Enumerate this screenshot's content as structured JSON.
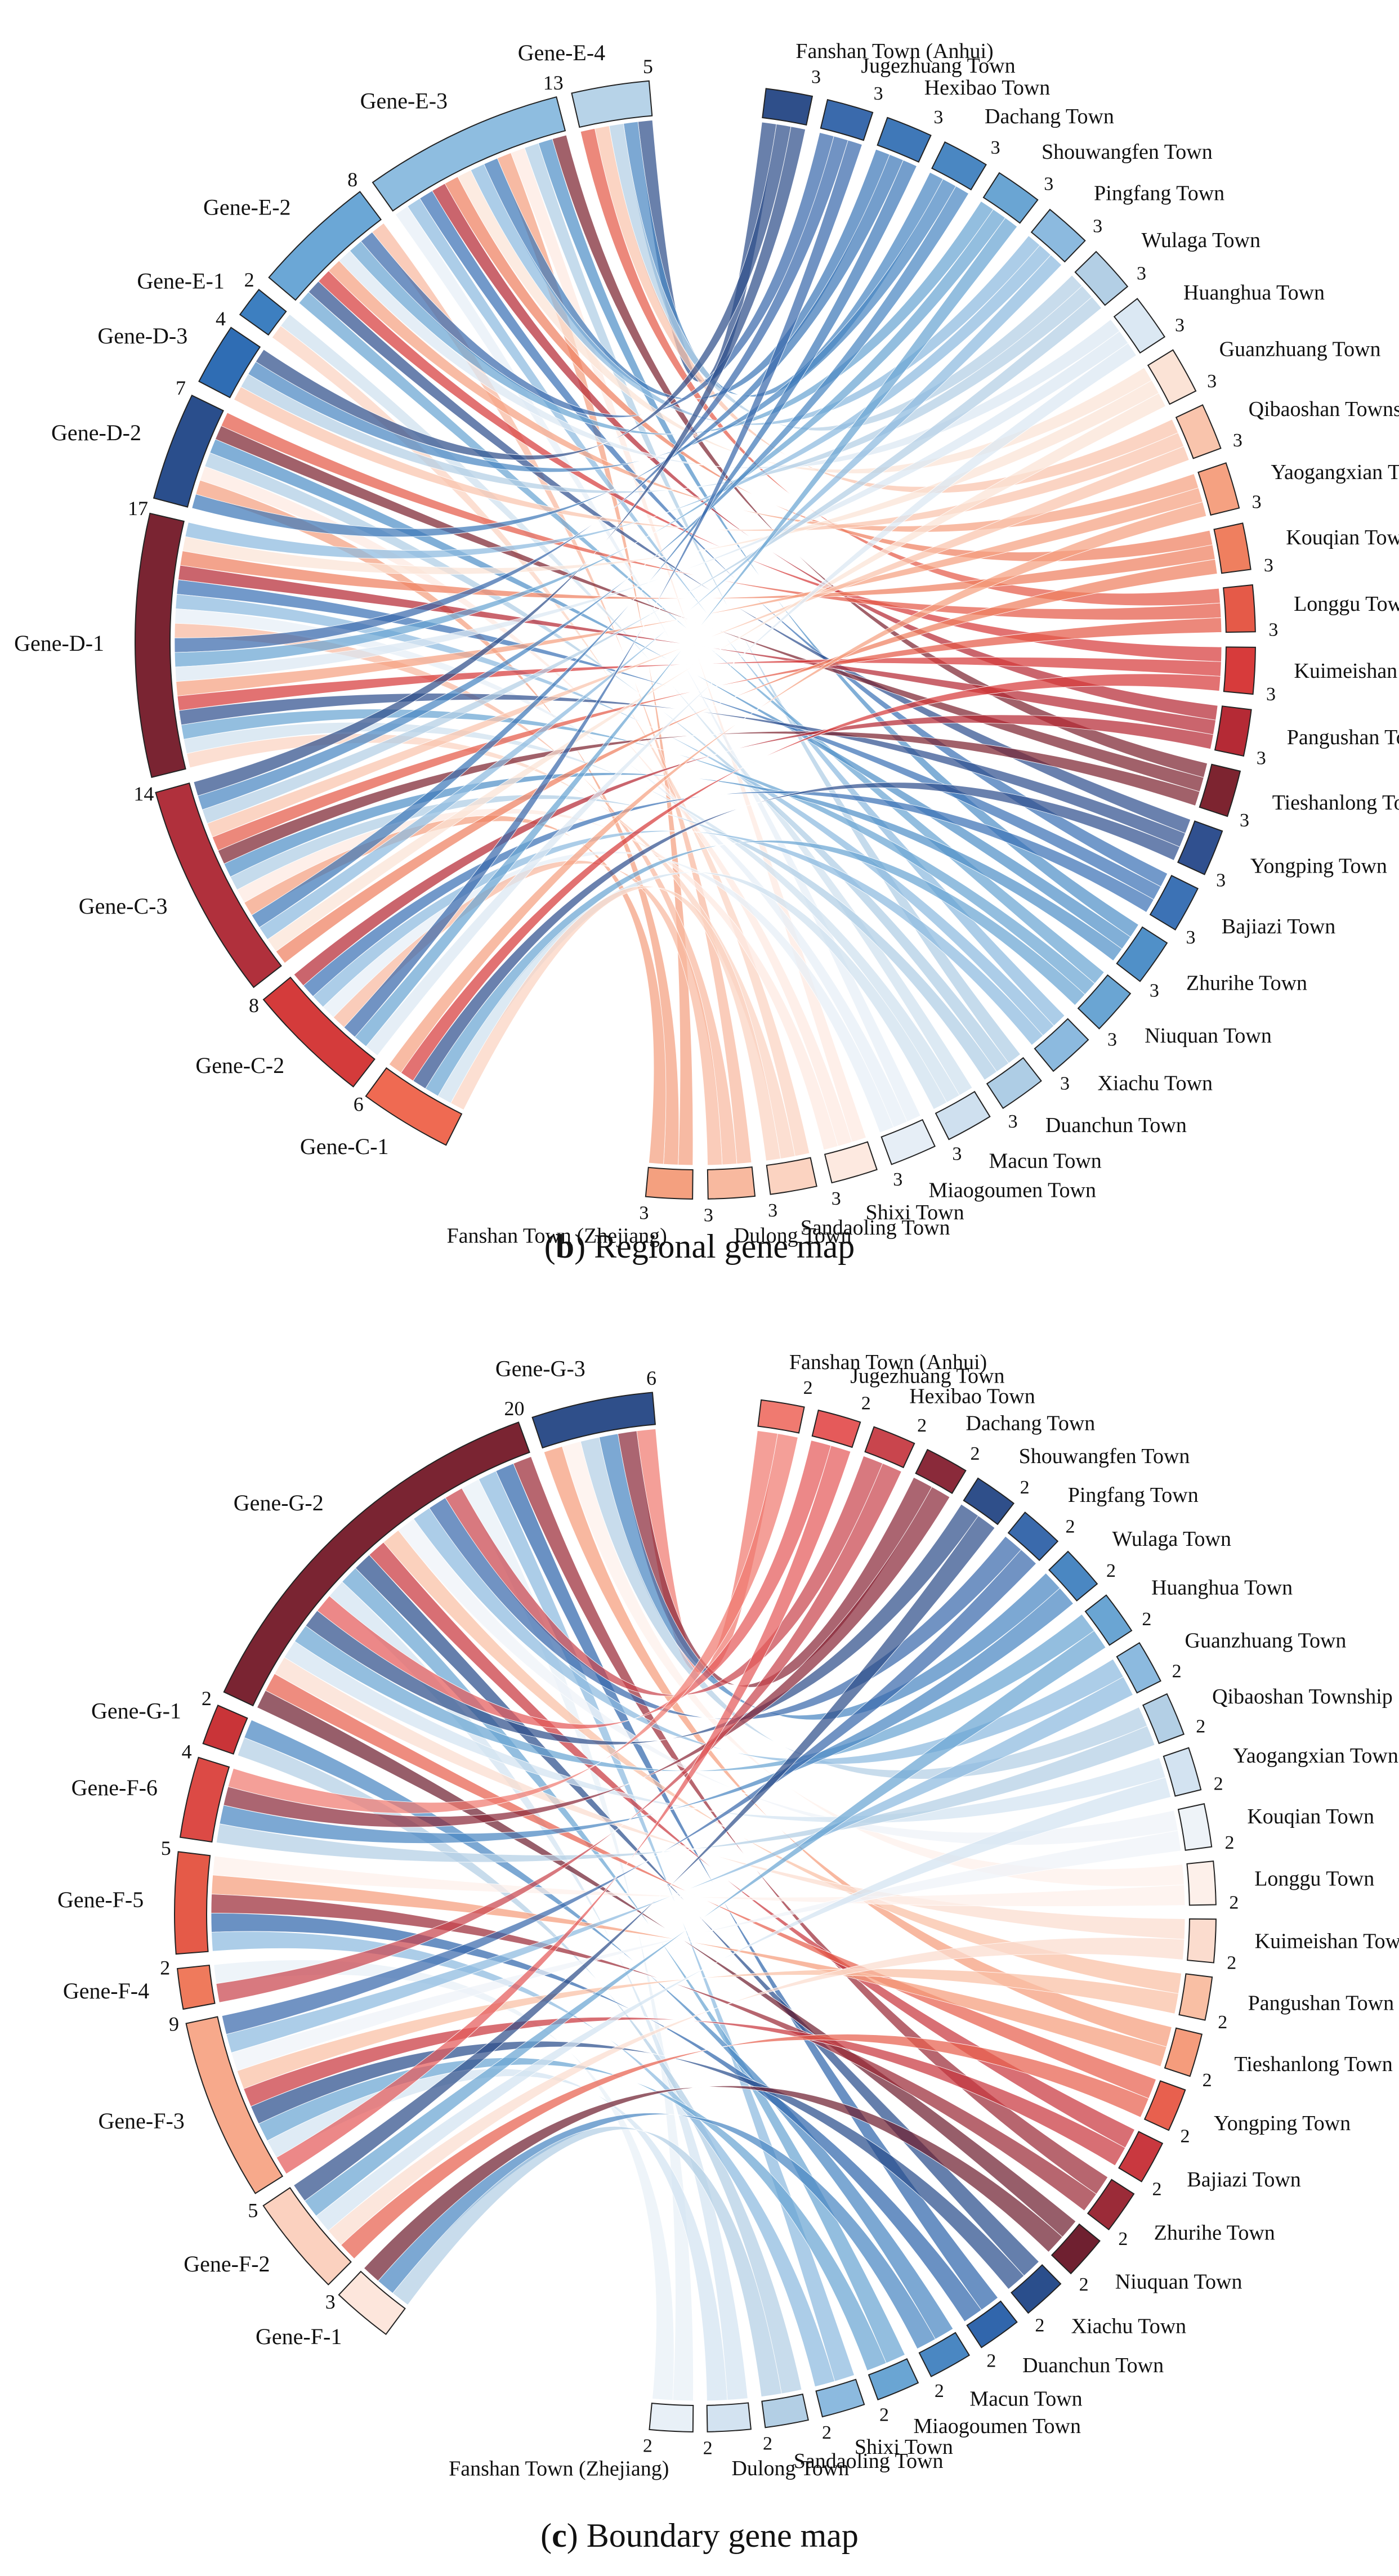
{
  "figure": {
    "panels": [
      {
        "caption_letter": "b",
        "caption_open": "(",
        "caption_close": ")",
        "caption_text": " Regional gene map"
      },
      {
        "caption_letter": "c",
        "caption_open": "(",
        "caption_close": ")",
        "caption_text": " Boundary gene map"
      }
    ]
  },
  "chart_data": [
    {
      "type": "chord",
      "title": "Regional gene map",
      "genes": [
        {
          "name": "Gene-E-4",
          "count": 5,
          "color": "#b7d3e8"
        },
        {
          "name": "Gene-E-3",
          "count": 13,
          "color": "#8ebde0"
        },
        {
          "name": "Gene-E-2",
          "count": 8,
          "color": "#6ba7d6"
        },
        {
          "name": "Gene-E-1",
          "count": 2,
          "color": "#3d7fc0"
        },
        {
          "name": "Gene-D-3",
          "count": 4,
          "color": "#2f6db4"
        },
        {
          "name": "Gene-D-2",
          "count": 7,
          "color": "#2a4e8c"
        },
        {
          "name": "Gene-D-1",
          "count": 17,
          "color": "#7a2432"
        },
        {
          "name": "Gene-C-3",
          "count": 14,
          "color": "#b0303c"
        },
        {
          "name": "Gene-C-2",
          "count": 8,
          "color": "#d43b3b"
        },
        {
          "name": "Gene-C-1",
          "count": 6,
          "color": "#ef6a52"
        }
      ],
      "towns": [
        {
          "name": "Fanshan Town (Anhui)",
          "count": 3,
          "color": "#2f4f8a"
        },
        {
          "name": "Jugezhuang Town",
          "count": 3,
          "color": "#3a6aac"
        },
        {
          "name": "Hexibao Town",
          "count": 3,
          "color": "#3f78b8"
        },
        {
          "name": "Dachang Town",
          "count": 3,
          "color": "#4a87c2"
        },
        {
          "name": "Shouwangfen Town",
          "count": 3,
          "color": "#6aa5d3"
        },
        {
          "name": "Pingfang Town",
          "count": 3,
          "color": "#8cbadf"
        },
        {
          "name": "Wulaga Town",
          "count": 3,
          "color": "#b3cfe5"
        },
        {
          "name": "Huanghua Town",
          "count": 3,
          "color": "#dbe8f3"
        },
        {
          "name": "Guanzhuang Town",
          "count": 3,
          "color": "#fbe3d6"
        },
        {
          "name": "Qibaoshan Township",
          "count": 3,
          "color": "#f9c4ac"
        },
        {
          "name": "Yaogangxian Town",
          "count": 3,
          "color": "#f5a181"
        },
        {
          "name": "Kouqian Town",
          "count": 3,
          "color": "#ef7f5f"
        },
        {
          "name": "Longgu Town",
          "count": 3,
          "color": "#e55a48"
        },
        {
          "name": "Kuimeishan Town",
          "count": 3,
          "color": "#d73b3b"
        },
        {
          "name": "Pangushan Town",
          "count": 3,
          "color": "#b52a35"
        },
        {
          "name": "Tieshanlong Town",
          "count": 3,
          "color": "#7d2430"
        },
        {
          "name": "Yongping Town",
          "count": 3,
          "color": "#30508f"
        },
        {
          "name": "Bajiazi Town",
          "count": 3,
          "color": "#3c72b5"
        },
        {
          "name": "Zhurihe Town",
          "count": 3,
          "color": "#5090c8"
        },
        {
          "name": "Niuquan Town",
          "count": 3,
          "color": "#6aa5d3"
        },
        {
          "name": "Xiachu Town",
          "count": 3,
          "color": "#8cbadf"
        },
        {
          "name": "Duanchun Town",
          "count": 3,
          "color": "#aecde5"
        },
        {
          "name": "Macun Town",
          "count": 3,
          "color": "#cfe0ef"
        },
        {
          "name": "Miaogoumen Town",
          "count": 3,
          "color": "#e6eef6"
        },
        {
          "name": "Shixi Town",
          "count": 3,
          "color": "#fde9e0"
        },
        {
          "name": "Sandaoling Town",
          "count": 3,
          "color": "#fbd3c1"
        },
        {
          "name": "Dulong Town",
          "count": 3,
          "color": "#f8b99f"
        },
        {
          "name": "Fanshan Town (Zhejiang)",
          "count": 3,
          "color": "#f4a07f"
        }
      ]
    },
    {
      "type": "chord",
      "title": "Boundary gene map",
      "genes": [
        {
          "name": "Gene-G-3",
          "count": 6,
          "color": "#2f4f8a"
        },
        {
          "name": "Gene-G-2",
          "count": 20,
          "color": "#7a2432"
        },
        {
          "name": "Gene-G-1",
          "count": 2,
          "color": "#c93438"
        },
        {
          "name": "Gene-F-6",
          "count": 4,
          "color": "#dc4a45"
        },
        {
          "name": "Gene-F-5",
          "count": 5,
          "color": "#e55a48"
        },
        {
          "name": "Gene-F-4",
          "count": 2,
          "color": "#ef7a5c"
        },
        {
          "name": "Gene-F-3",
          "count": 9,
          "color": "#f7a98b"
        },
        {
          "name": "Gene-F-2",
          "count": 5,
          "color": "#fbd1bf"
        },
        {
          "name": "Gene-F-1",
          "count": 3,
          "color": "#fde6dc"
        }
      ],
      "towns": [
        {
          "name": "Fanshan Town (Anhui)",
          "count": 2,
          "color": "#f07a70"
        },
        {
          "name": "Jugezhuang Town",
          "count": 2,
          "color": "#e55a5a"
        },
        {
          "name": "Hexibao Town",
          "count": 2,
          "color": "#c9454d"
        },
        {
          "name": "Dachang Town",
          "count": 2,
          "color": "#8a2a3a"
        },
        {
          "name": "Shouwangfen Town",
          "count": 2,
          "color": "#2f4f8a"
        },
        {
          "name": "Pingfang Town",
          "count": 2,
          "color": "#3a6aac"
        },
        {
          "name": "Wulaga Town",
          "count": 2,
          "color": "#4a87c2"
        },
        {
          "name": "Huanghua Town",
          "count": 2,
          "color": "#6aa5d3"
        },
        {
          "name": "Guanzhuang Town",
          "count": 2,
          "color": "#8cbadf"
        },
        {
          "name": "Qibaoshan Township",
          "count": 2,
          "color": "#b3cfe5"
        },
        {
          "name": "Yaogangxian Town",
          "count": 2,
          "color": "#d3e3f1"
        },
        {
          "name": "Kouqian Town",
          "count": 2,
          "color": "#eef3f8"
        },
        {
          "name": "Longgu Town",
          "count": 2,
          "color": "#fdf0ea"
        },
        {
          "name": "Kuimeishan Town",
          "count": 2,
          "color": "#fbdcce"
        },
        {
          "name": "Pangushan Town",
          "count": 2,
          "color": "#f9bfa4"
        },
        {
          "name": "Tieshanlong Town",
          "count": 2,
          "color": "#f59c7c"
        },
        {
          "name": "Yongping Town",
          "count": 2,
          "color": "#e8604e"
        },
        {
          "name": "Bajiazi Town",
          "count": 2,
          "color": "#c9383f"
        },
        {
          "name": "Zhurihe Town",
          "count": 2,
          "color": "#9b2b38"
        },
        {
          "name": "Niuquan Town",
          "count": 2,
          "color": "#6f2030"
        },
        {
          "name": "Xiachu Town",
          "count": 2,
          "color": "#2a4e8c"
        },
        {
          "name": "Duanchun Town",
          "count": 2,
          "color": "#3166ac"
        },
        {
          "name": "Macun Town",
          "count": 2,
          "color": "#4a87c2"
        },
        {
          "name": "Miaogoumen Town",
          "count": 2,
          "color": "#6aa5d3"
        },
        {
          "name": "Shixi Town",
          "count": 2,
          "color": "#8cbadf"
        },
        {
          "name": "Sandaoling Town",
          "count": 2,
          "color": "#b3cfe5"
        },
        {
          "name": "Dulong Town",
          "count": 2,
          "color": "#d3e3f1"
        },
        {
          "name": "Fanshan Town (Zhejiang)",
          "count": 2,
          "color": "#e8f0f7"
        }
      ]
    }
  ]
}
